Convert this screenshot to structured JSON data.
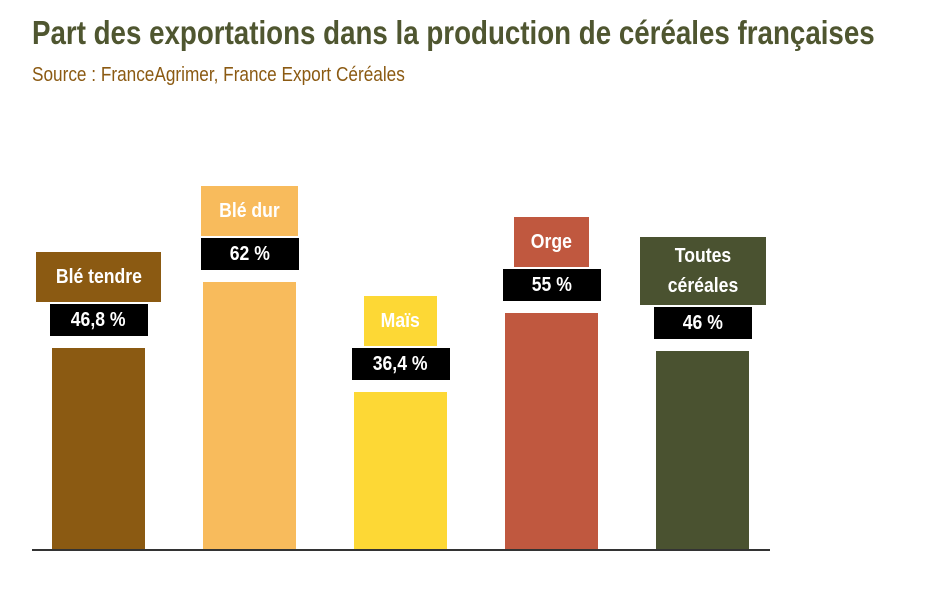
{
  "chart_data": {
    "type": "bar",
    "title": "Part des exportations dans la production de céréales françaises",
    "subtitle": "Source : FranceAgrimer, France Export Céréales",
    "categories": [
      "Blé tendre",
      "Blé dur",
      "Maïs",
      "Orge",
      "Toutes céréales"
    ],
    "values": [
      46.8,
      62,
      36.4,
      55,
      46
    ],
    "value_labels": [
      "46,8 %",
      "62 %",
      "36,4 %",
      "55 %",
      "46 %"
    ],
    "colors": [
      "#8b5a12",
      "#f8bb5c",
      "#fdd835",
      "#c0583f",
      "#4a5230"
    ],
    "label_text_colors": [
      "#ffffff",
      "#ffffff",
      "#ffffff",
      "#ffffff",
      "#ffffff"
    ],
    "xlabel": "",
    "ylabel": "",
    "ylim": [
      0,
      70
    ],
    "grid": false,
    "legend": "none"
  }
}
